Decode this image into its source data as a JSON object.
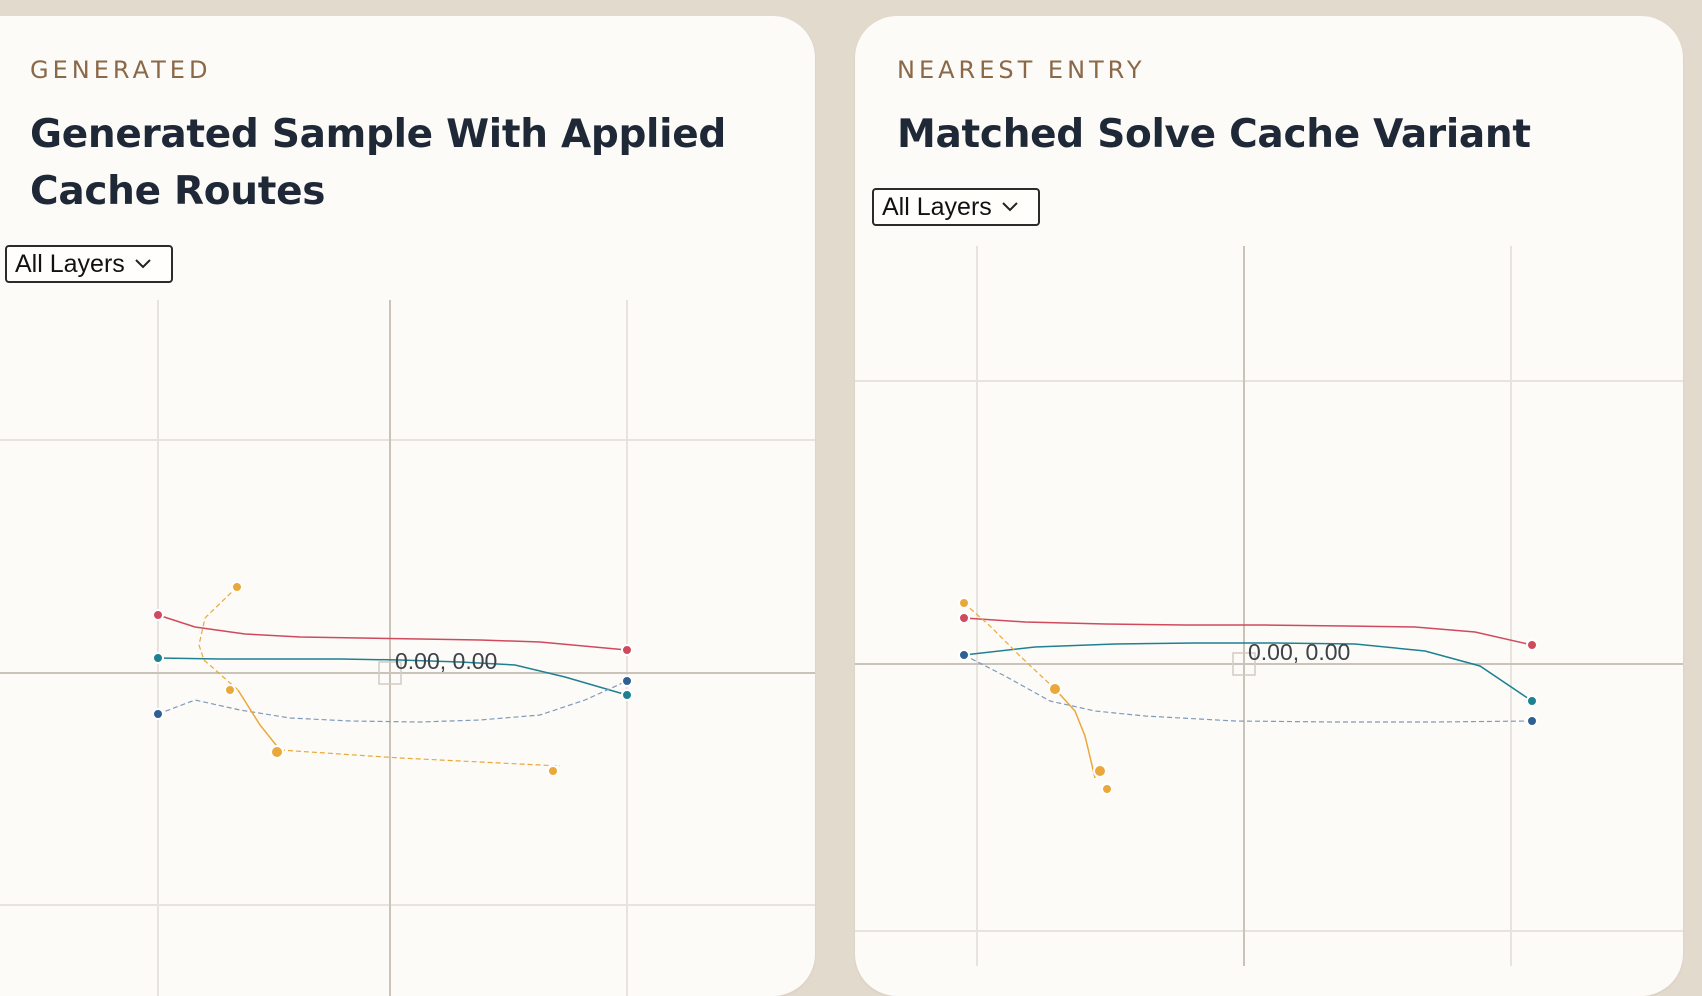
{
  "panels": {
    "left": {
      "eyebrow": "GENERATED",
      "title": "Generated Sample With Applied Cache Routes",
      "layer_select": {
        "selected": "All Layers"
      },
      "origin_readout": "0.00, 0.00"
    },
    "right": {
      "eyebrow": "NEAREST ENTRY",
      "title": "Matched Solve Cache Variant",
      "layer_select": {
        "selected": "All Layers"
      },
      "origin_readout": "0.00, 0.00"
    }
  },
  "colors": {
    "route_red": "#d04a5e",
    "route_teal": "#1f8092",
    "route_blue": "#2f5f93",
    "route_orange": "#eaa83a",
    "grid": "#e6e1d9",
    "axis": "#c3bdb4"
  },
  "icons": {
    "select_arrow": "chevron-down-icon",
    "origin_marker": "origin-square-icon"
  }
}
